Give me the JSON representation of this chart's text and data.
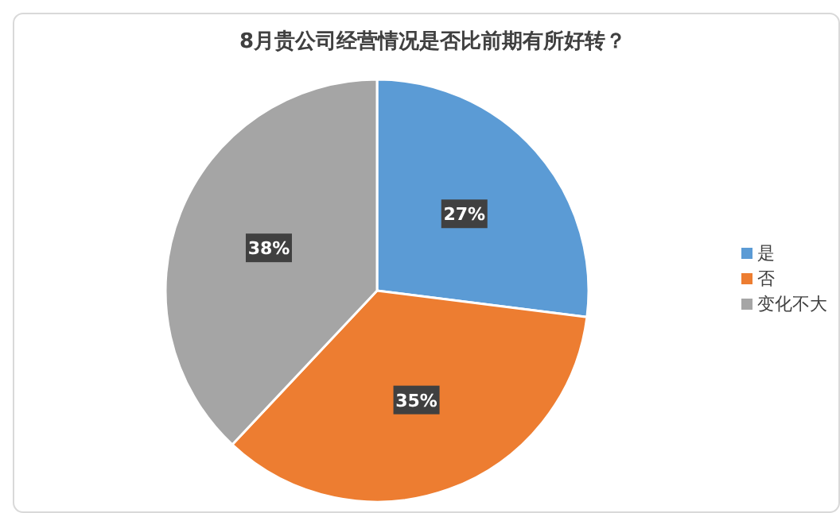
{
  "chart_data": {
    "type": "pie",
    "title": "8月贵公司经营情况是否比前期有所好转？",
    "categories": [
      "是",
      "否",
      "变化不大"
    ],
    "values": [
      27,
      35,
      38
    ],
    "value_labels": [
      "27%",
      "35%",
      "38%"
    ],
    "colors": [
      "#5b9bd5",
      "#ed7d31",
      "#a5a5a5"
    ],
    "legend": "right"
  }
}
